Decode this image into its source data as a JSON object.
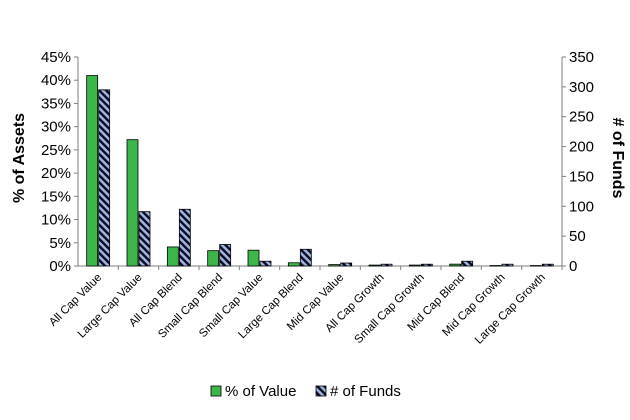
{
  "chart_data": {
    "type": "bar",
    "categories": [
      "All Cap Value",
      "Large Cap Value",
      "All Cap Blend",
      "Small Cap Blend",
      "Small Cap Value",
      "Large Cap Blend",
      "Mid Cap Value",
      "All Cap Growth",
      "Small Cap Growth",
      "Mid Cap Blend",
      "Mid Cap Growth",
      "Large Cap Growth"
    ],
    "series": [
      {
        "name": "% of Value",
        "axis": "left",
        "color": "#3cb54a",
        "values": [
          41.0,
          27.2,
          4.1,
          3.3,
          3.4,
          0.7,
          0.3,
          0.2,
          0.2,
          0.4,
          0.1,
          0.1
        ]
      },
      {
        "name": "# of Funds",
        "axis": "right",
        "color": "#9eb3e0",
        "pattern": "diagonal-stripes",
        "values": [
          295,
          91,
          95,
          36,
          8,
          28,
          5,
          3,
          3,
          8,
          3,
          3
        ]
      }
    ],
    "ylabel": "% of Assets",
    "y2label": "# of Funds",
    "ylim": [
      0,
      45
    ],
    "y2lim": [
      0,
      350
    ],
    "yticks": [
      "0%",
      "5%",
      "10%",
      "15%",
      "20%",
      "25%",
      "30%",
      "35%",
      "40%",
      "45%"
    ],
    "y2ticks": [
      "0",
      "50",
      "100",
      "150",
      "200",
      "250",
      "300",
      "350"
    ],
    "legend": "bottom",
    "grid": false
  }
}
